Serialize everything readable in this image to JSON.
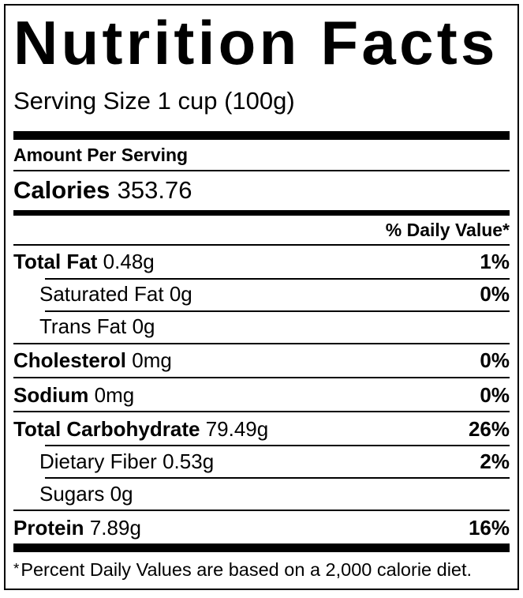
{
  "title": "Nutrition Facts",
  "serving_size": "Serving Size 1 cup (100g)",
  "amount_per_serving": "Amount Per Serving",
  "calories": {
    "label": "Calories",
    "value": "353.76"
  },
  "daily_value_header": "% Daily Value*",
  "rows": [
    {
      "label": "Total Fat",
      "amount": "0.48g",
      "dv": "1%"
    },
    {
      "label": "Saturated Fat",
      "amount": "0g",
      "dv": "0%"
    },
    {
      "label": "Trans Fat",
      "amount": "0g",
      "dv": ""
    },
    {
      "label": "Cholesterol",
      "amount": "0mg",
      "dv": "0%"
    },
    {
      "label": "Sodium",
      "amount": "0mg",
      "dv": "0%"
    },
    {
      "label": "Total Carbohydrate",
      "amount": "79.49g",
      "dv": "26%"
    },
    {
      "label": "Dietary Fiber",
      "amount": "0.53g",
      "dv": "2%"
    },
    {
      "label": "Sugars",
      "amount": "0g",
      "dv": ""
    },
    {
      "label": "Protein",
      "amount": "7.89g",
      "dv": "16%"
    }
  ],
  "footnote": {
    "asterisk": "*",
    "text": "Percent Daily Values are based on a 2,000 calorie diet."
  },
  "colors": {
    "ink": "#000000",
    "background": "#ffffff"
  }
}
